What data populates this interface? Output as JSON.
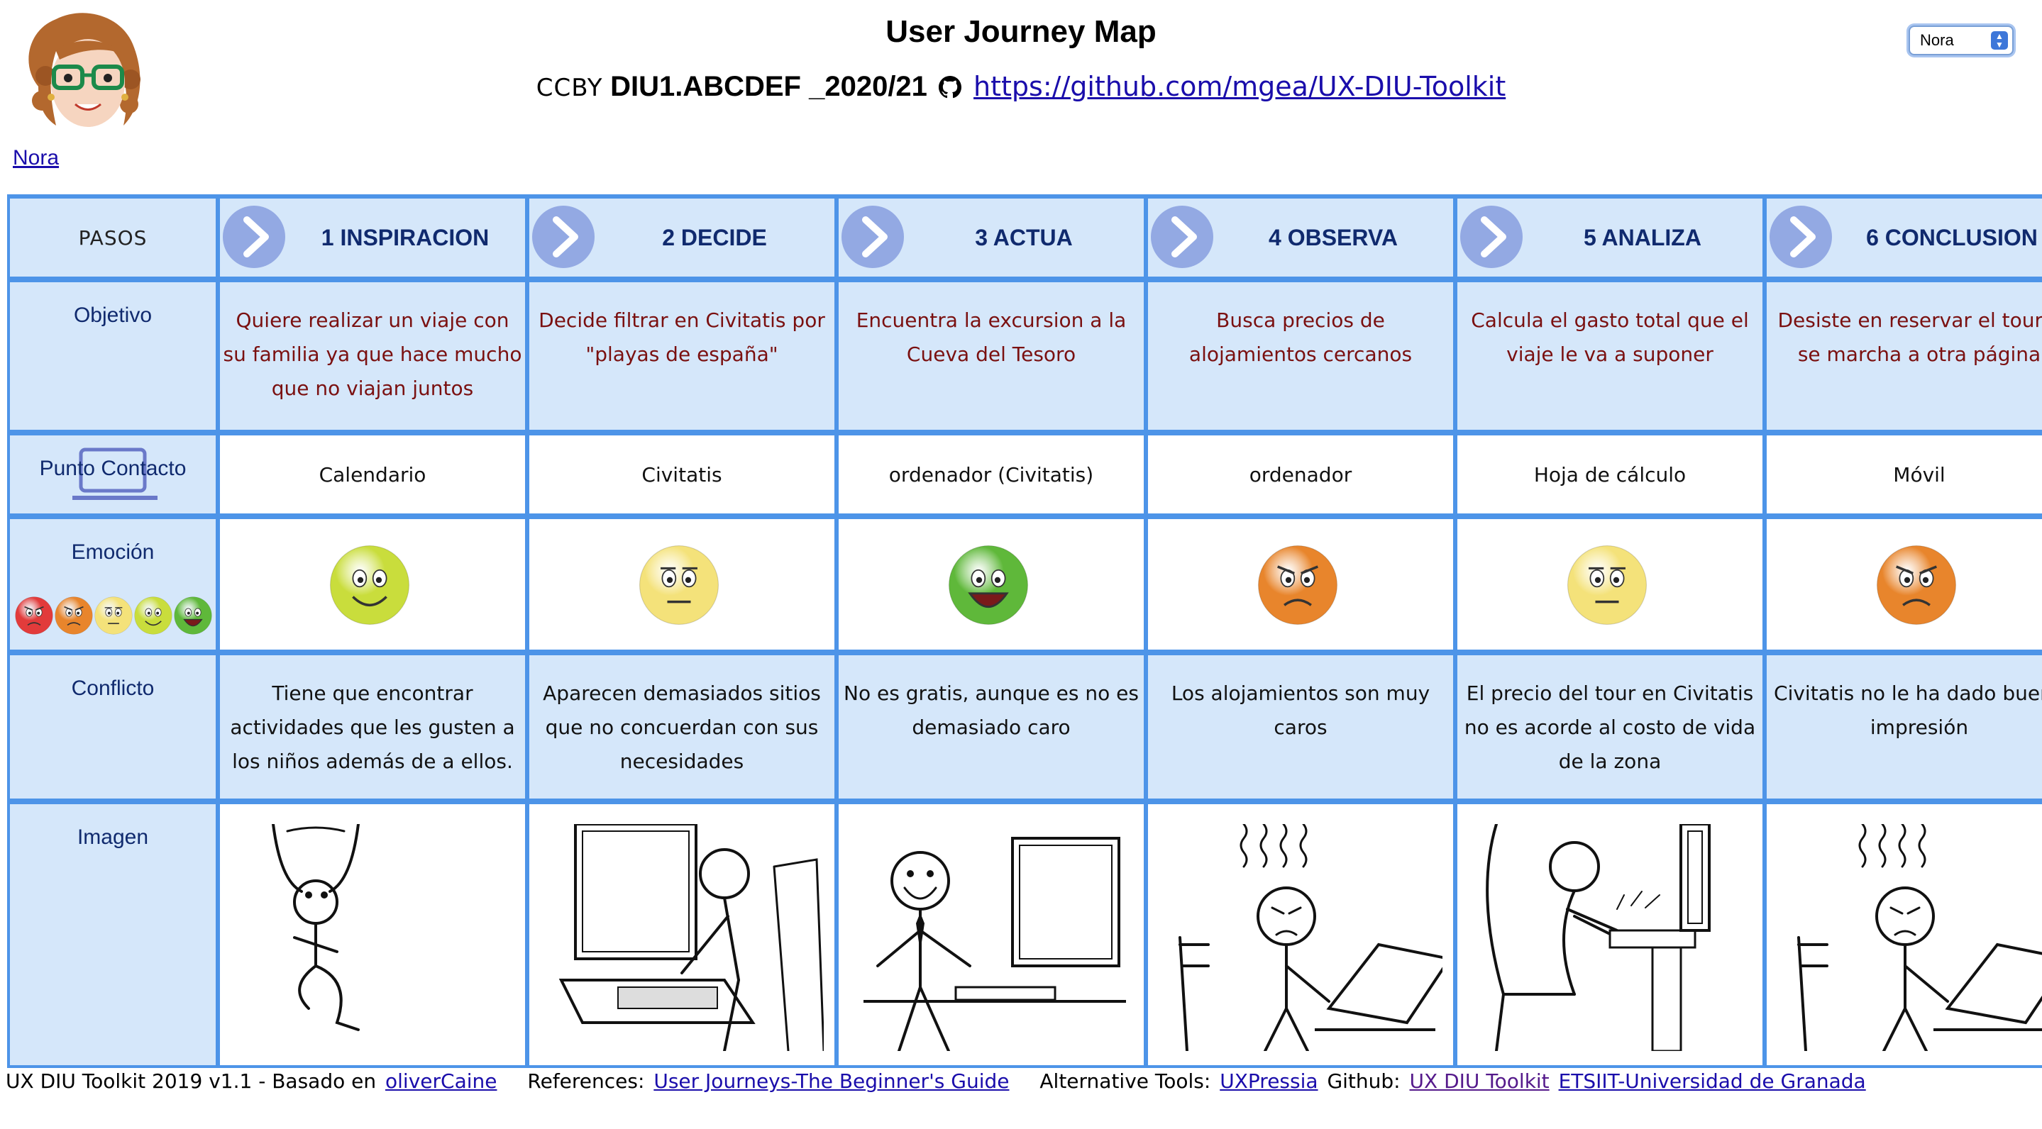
{
  "header": {
    "title": "User Journey Map",
    "license": "CCBY",
    "code": "DIU1.ABCDEF _2020/21",
    "repo_link": "https://github.com/mgea/UX-DIU-Toolkit",
    "persona_link": "Nora",
    "persona_select": "Nora"
  },
  "row_headers": {
    "pasos": "PASOS",
    "objetivo": "Objetivo",
    "punto_contacto": "Punto Contacto",
    "emocion": "Emoción",
    "conflicto": "Conflicto",
    "imagen": "Imagen"
  },
  "steps": [
    {
      "label": "1 INSPIRACION",
      "objetivo": "Quiere realizar un viaje con su familia ya que hace mucho que no viajan juntos",
      "contacto": "Calendario",
      "emotion": "happy",
      "conflicto": "Tiene que encontrar actividades que les gusten a los niños además de a ellos.",
      "image": "stickman-arms-up"
    },
    {
      "label": "2 DECIDE",
      "objetivo": "Decide filtrar en Civitatis por \"playas de españa\"",
      "contacto": "Civitatis",
      "emotion": "neutral",
      "conflicto": "Aparecen demasiados sitios que no concuerdan con sus necesidades",
      "image": "stickman-staring-at-monitor"
    },
    {
      "label": "3 ACTUA",
      "objetivo": "Encuentra la excursion a la Cueva del Tesoro",
      "contacto": "ordenador (Civitatis)",
      "emotion": "very-happy",
      "conflicto": "No es gratis, aunque es no es demasiado caro",
      "image": "stickman-smiling-at-computer"
    },
    {
      "label": "4 OBSERVA",
      "objetivo": "Busca precios de alojamientos cercanos",
      "contacto": "ordenador",
      "emotion": "angry",
      "conflicto": "Los alojamientos son muy caros",
      "image": "stickman-frustrated-laptop"
    },
    {
      "label": "5 ANALIZA",
      "objetivo": "Calcula el gasto total que el viaje le va a suponer",
      "contacto": "Hoja de cálculo",
      "emotion": "neutral",
      "conflicto": "El precio del tour en Civitatis no es acorde al costo de vida de la zona",
      "image": "stickman-typing-angrily"
    },
    {
      "label": "6 CONCLUSION",
      "objetivo": "Desiste en reservar el tour y se marcha a otra página",
      "contacto": "Móvil",
      "emotion": "angry",
      "conflicto": "Civitatis no le ha dado buena impresión",
      "image": "stickman-frustrated-laptop"
    }
  ],
  "emotion_colors": {
    "very-happy": "#5fb83a",
    "happy": "#c9dd3c",
    "neutral": "#f4e27a",
    "angry": "#e8852c",
    "very-angry": "#e23b3b"
  },
  "footer": {
    "credit": "UX DIU Toolkit 2019 v1.1 - Basado en",
    "credit_link": "oliverCaine",
    "references_label": "References:",
    "references_link": "User Journeys-The Beginner's Guide",
    "alt_tools_label": "Alternative Tools:",
    "alt_tools_link": "UXPressia",
    "github_label": "Github:",
    "github_link": "UX DIU Toolkit",
    "etsiit_link": "ETSIIT-Universidad de Granada"
  }
}
